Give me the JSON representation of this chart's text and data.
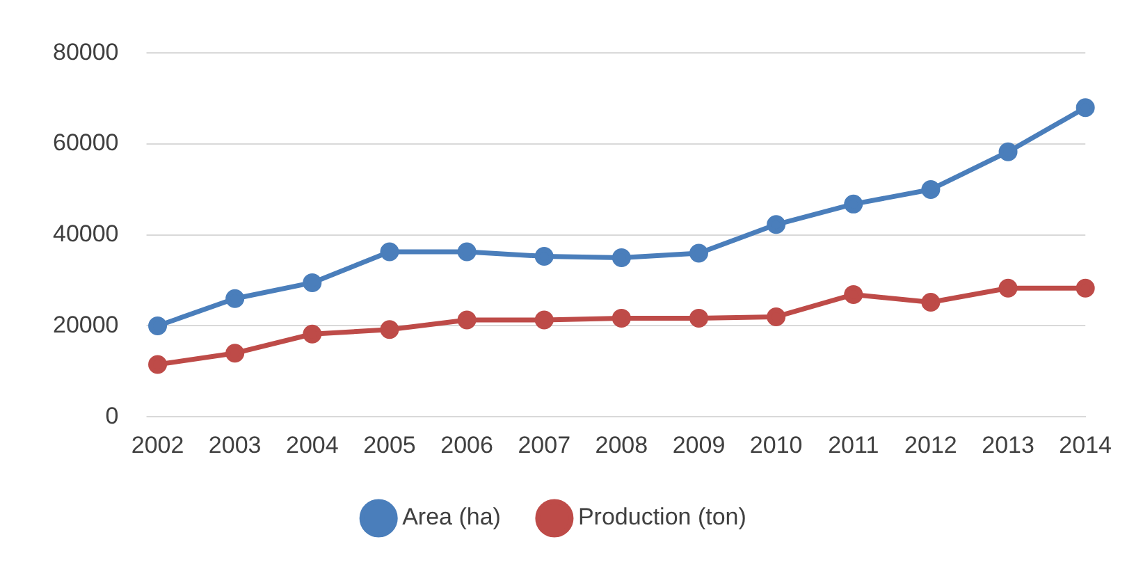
{
  "chart_data": {
    "type": "line",
    "categories": [
      "2002",
      "2003",
      "2004",
      "2005",
      "2006",
      "2007",
      "2008",
      "2009",
      "2010",
      "2011",
      "2012",
      "2013",
      "2014"
    ],
    "series": [
      {
        "name": "Area (ha)",
        "color": "#4a7ebb",
        "values": [
          20000,
          26000,
          29500,
          36300,
          36300,
          35300,
          35000,
          36000,
          42300,
          46800,
          50000,
          58300,
          68000
        ]
      },
      {
        "name": "Production (ton)",
        "color": "#be4b48",
        "values": [
          11500,
          14000,
          18200,
          19200,
          21300,
          21300,
          21700,
          21700,
          22000,
          26900,
          25200,
          28300,
          28300
        ]
      }
    ],
    "ylim": [
      0,
      80000
    ],
    "yticks": [
      0,
      20000,
      40000,
      60000,
      80000
    ],
    "grid": "y",
    "legend": "bottom",
    "marker": "circle",
    "line_style": "solid"
  }
}
